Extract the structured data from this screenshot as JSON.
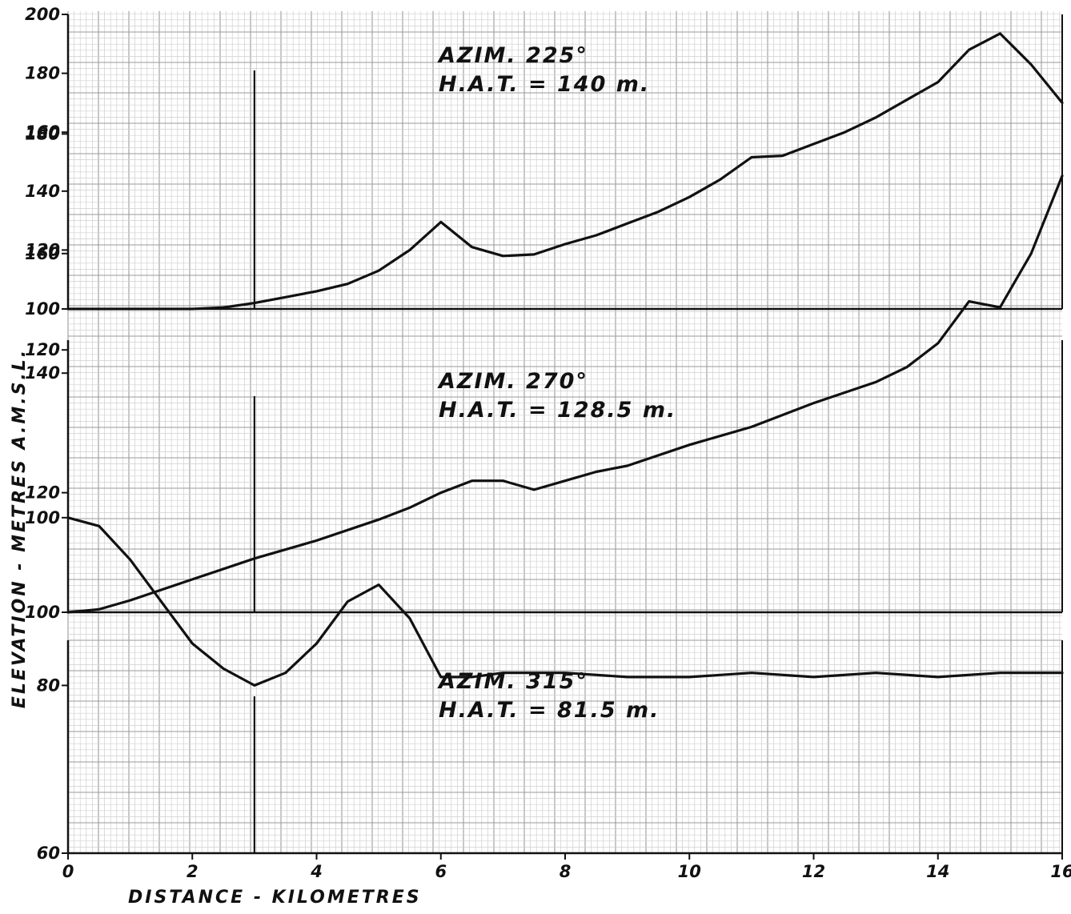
{
  "chart_data": {
    "type": "line",
    "x_axis": {
      "label": "DISTANCE - KILOMETRES",
      "range": [
        0,
        16
      ],
      "ticks": [
        0,
        2,
        4,
        6,
        8,
        10,
        12,
        14,
        16
      ],
      "tick_labels": [
        "0",
        "2",
        "4",
        "6",
        "8",
        "10",
        "12",
        "14",
        "16"
      ]
    },
    "y_axis_label": "ELEVATION - METRES A.M.S.L.",
    "reference_line_x": 3,
    "grid": true,
    "charts": [
      {
        "annotation": [
          "AZIM. 225°",
          "H.A.T. = 140 m."
        ],
        "ylim": [
          100,
          200
        ],
        "y_ticks": [
          100,
          120,
          140,
          160,
          180,
          200
        ],
        "y_tick_labels": [
          "100",
          "120",
          "140",
          "160",
          "180",
          "200"
        ],
        "x": [
          0,
          1,
          2,
          2.5,
          3,
          3.5,
          4,
          4.5,
          5,
          5.5,
          6,
          6.5,
          7,
          7.5,
          8,
          8.5,
          9,
          9.5,
          10,
          10.5,
          11,
          11.5,
          12,
          12.5,
          13,
          13.5,
          14,
          14.5,
          15,
          15.5,
          16
        ],
        "y": [
          100,
          100,
          100,
          100.5,
          102,
          104,
          106,
          108.5,
          113,
          120,
          129.5,
          121,
          118,
          118.5,
          122,
          125,
          129,
          133,
          138,
          144,
          151.5,
          152,
          156,
          160,
          165,
          171,
          177,
          188,
          193.5,
          183,
          170
        ]
      },
      {
        "annotation": [
          "AZIM. 270°",
          "H.A.T. = 128.5 m."
        ],
        "ylim": [
          100,
          190
        ],
        "y_ticks": [
          100,
          120,
          140,
          160,
          180
        ],
        "y_tick_labels": [
          "100",
          "120",
          "140",
          "160",
          "180"
        ],
        "x": [
          0,
          0.5,
          1,
          2,
          3,
          4,
          5,
          5.5,
          6,
          6.5,
          7,
          7.5,
          8,
          8.5,
          9,
          10,
          11,
          12,
          13,
          13.5,
          14,
          14.5,
          15,
          15.5,
          16
        ],
        "y": [
          100,
          100.5,
          102,
          105.5,
          109,
          112,
          115.5,
          117.5,
          120,
          122,
          122,
          120.5,
          122,
          123.5,
          124.5,
          128,
          131,
          135,
          138.5,
          141,
          145,
          152,
          151,
          160,
          173
        ]
      },
      {
        "annotation": [
          "AZIM. 315°",
          "H.A.T. = 81.5 m."
        ],
        "ylim": [
          60,
          130
        ],
        "y_ticks": [
          60,
          80,
          100,
          120
        ],
        "y_tick_labels": [
          "60",
          "80",
          "100",
          "120"
        ],
        "x": [
          0,
          0.5,
          1,
          1.5,
          2,
          2.5,
          3,
          3.5,
          4,
          4.5,
          5,
          5.5,
          6,
          6.5,
          7,
          8,
          9,
          10,
          11,
          12,
          13,
          14,
          15,
          16
        ],
        "y": [
          100,
          99,
          95,
          90,
          85,
          82,
          80,
          81.5,
          85,
          90,
          92,
          88,
          81,
          81,
          81.5,
          81.5,
          81,
          81,
          81.5,
          81,
          81.5,
          81,
          81.5,
          81.5
        ]
      }
    ]
  }
}
